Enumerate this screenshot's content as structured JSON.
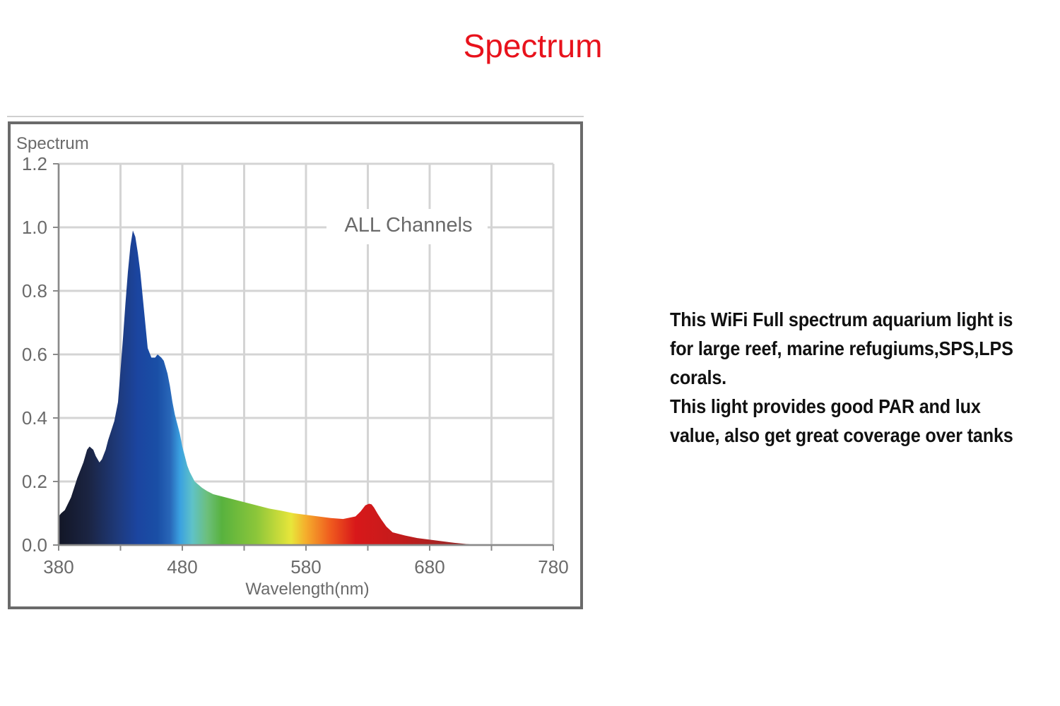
{
  "page": {
    "title": "Spectrum",
    "title_color": "#e8121c",
    "description": [
      "This WiFi Full spectrum aquarium light is for large reef, marine refugiums,SPS,LPS corals.",
      "This light provides good PAR and lux value, also get great coverage over tanks"
    ]
  },
  "chart_data": {
    "type": "area",
    "title": "",
    "ylabel": "Spectrum",
    "xlabel": "Wavelength(nm)",
    "annotation": "ALL Channels",
    "xlim": [
      380,
      780
    ],
    "ylim": [
      0,
      1.2
    ],
    "x_ticks": [
      380,
      480,
      580,
      680,
      780
    ],
    "y_ticks": [
      "0.0",
      "0.2",
      "0.4",
      "0.6",
      "0.8",
      "1.0",
      "1.2"
    ],
    "grid": true,
    "series": [
      {
        "x": [
          380,
          382,
          385,
          390,
          395,
          400,
          403,
          405,
          408,
          410,
          413,
          415,
          418,
          420,
          425,
          428,
          430,
          432,
          434,
          436,
          438,
          440,
          442,
          444,
          446,
          448,
          450,
          452,
          455,
          458,
          460,
          463,
          465,
          468,
          470,
          472,
          474,
          476,
          478,
          480,
          482,
          484,
          486,
          488,
          490,
          493,
          496,
          500,
          505,
          510,
          520,
          530,
          540,
          550,
          560,
          570,
          580,
          590,
          600,
          610,
          620,
          624,
          628,
          631,
          633,
          635,
          638,
          641,
          645,
          650,
          660,
          670,
          680,
          690,
          700,
          710,
          720
        ],
        "values": [
          0.09,
          0.1,
          0.11,
          0.15,
          0.21,
          0.26,
          0.3,
          0.31,
          0.3,
          0.28,
          0.26,
          0.27,
          0.3,
          0.33,
          0.39,
          0.45,
          0.55,
          0.65,
          0.76,
          0.86,
          0.94,
          0.99,
          0.97,
          0.92,
          0.86,
          0.78,
          0.7,
          0.62,
          0.59,
          0.59,
          0.6,
          0.59,
          0.58,
          0.54,
          0.5,
          0.45,
          0.41,
          0.38,
          0.35,
          0.31,
          0.28,
          0.25,
          0.23,
          0.215,
          0.2,
          0.19,
          0.18,
          0.17,
          0.16,
          0.155,
          0.145,
          0.135,
          0.125,
          0.115,
          0.108,
          0.1,
          0.095,
          0.09,
          0.085,
          0.082,
          0.09,
          0.105,
          0.125,
          0.13,
          0.128,
          0.118,
          0.098,
          0.08,
          0.058,
          0.04,
          0.03,
          0.022,
          0.017,
          0.012,
          0.007,
          0.003,
          0
        ]
      }
    ]
  }
}
